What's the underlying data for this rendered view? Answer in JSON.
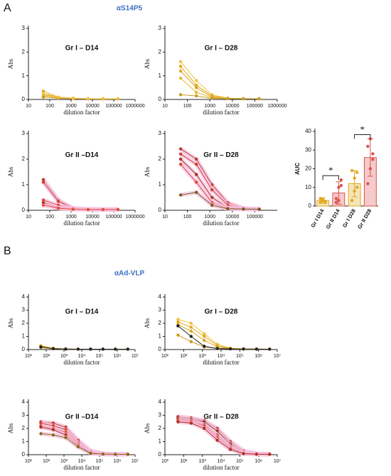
{
  "panel_labels": [
    "A",
    "B"
  ],
  "panel_titles": [
    "αS14P5",
    "αAd-VLP"
  ],
  "chart_data": [
    {
      "type": "line",
      "title": "Gr I – D14",
      "xlabel": "dilution factor",
      "ylabel": "Abs",
      "xscale": "log",
      "x": [
        50,
        250,
        1250,
        6250,
        31250,
        156250
      ],
      "xlim": [
        10,
        1000000
      ],
      "xticks": [
        10,
        100,
        1000,
        10000,
        100000,
        1000000
      ],
      "ylim": [
        0,
        3
      ],
      "yticks": [
        0,
        1,
        2,
        3
      ],
      "series": [
        {
          "color": "#e0a81e",
          "values": [
            0.35,
            0.1,
            0.05,
            0.03,
            0.03,
            0.03
          ]
        },
        {
          "color": "#d9a520",
          "values": [
            0.2,
            0.1,
            0.05,
            0.03,
            0.03,
            0.02
          ]
        },
        {
          "color": "#e8b830",
          "values": [
            0.15,
            0.08,
            0.04,
            0.03,
            0.03,
            0.03
          ]
        },
        {
          "color": "#c99a1a",
          "values": [
            0.1,
            0.05,
            0.03,
            0.02,
            0.02,
            0.02
          ]
        },
        {
          "color": "#f0c040",
          "values": [
            0.25,
            0.1,
            0.04,
            0.03,
            0.03,
            0.03
          ]
        }
      ]
    },
    {
      "type": "line",
      "title": "Gr I – D28",
      "xlabel": "dilution factor",
      "ylabel": "Abs",
      "xscale": "log",
      "x": [
        50,
        250,
        1250,
        6250,
        31250,
        156250
      ],
      "xlim": [
        10,
        1000000
      ],
      "xticks": [
        10,
        100,
        1000,
        10000,
        100000,
        1000000
      ],
      "ylim": [
        0,
        3
      ],
      "yticks": [
        0,
        1,
        2,
        3
      ],
      "series": [
        {
          "color": "#f0c040",
          "values": [
            1.6,
            0.8,
            0.2,
            0.05,
            0.03,
            0.03
          ]
        },
        {
          "color": "#e0a81e",
          "values": [
            1.4,
            0.6,
            0.15,
            0.05,
            0.03,
            0.03
          ]
        },
        {
          "color": "#d9a520",
          "values": [
            1.2,
            0.5,
            0.1,
            0.04,
            0.03,
            0.03
          ]
        },
        {
          "color": "#e8b830",
          "values": [
            0.9,
            0.3,
            0.08,
            0.04,
            0.03,
            0.03
          ]
        },
        {
          "color": "#c99a1a",
          "values": [
            0.2,
            0.15,
            0.05,
            0.03,
            0.03,
            0.03
          ]
        }
      ]
    },
    {
      "type": "line",
      "title": "Gr II –D14",
      "xlabel": "dilution factor",
      "ylabel": "Abs",
      "xscale": "log",
      "halo": "#f7c0e0",
      "x": [
        50,
        250,
        1250,
        6250,
        31250,
        156250
      ],
      "xlim": [
        10,
        1000000
      ],
      "xticks": [
        10,
        100,
        1000,
        10000,
        100000,
        1000000
      ],
      "ylim": [
        0,
        3
      ],
      "yticks": [
        0,
        1,
        2,
        3
      ],
      "series": [
        {
          "color": "#c0392b",
          "values": [
            1.2,
            0.4,
            0.08,
            0.04,
            0.03,
            0.03
          ]
        },
        {
          "color": "#d04030",
          "values": [
            1.1,
            0.35,
            0.07,
            0.04,
            0.03,
            0.03
          ]
        },
        {
          "color": "#e0453a",
          "values": [
            0.4,
            0.2,
            0.06,
            0.04,
            0.03,
            0.03
          ]
        },
        {
          "color": "#b03020",
          "values": [
            0.3,
            0.1,
            0.05,
            0.03,
            0.03,
            0.03
          ]
        },
        {
          "color": "#e85040",
          "values": [
            0.2,
            0.08,
            0.04,
            0.03,
            0.03,
            0.03
          ]
        }
      ]
    },
    {
      "type": "line",
      "title": "Gr II – D28",
      "xlabel": "dilution factor",
      "ylabel": "Abs",
      "xscale": "log",
      "halo": "#f7c0e0",
      "x": [
        50,
        250,
        1250,
        6250,
        31250,
        156250
      ],
      "xlim": [
        10,
        1000000
      ],
      "xticks": [
        10,
        100,
        1000,
        10000,
        100000
      ],
      "ylim": [
        0,
        3
      ],
      "yticks": [
        0,
        1,
        2,
        3
      ],
      "series": [
        {
          "color": "#c0392b",
          "values": [
            2.4,
            2.0,
            1.0,
            0.3,
            0.08,
            0.05
          ]
        },
        {
          "color": "#d04030",
          "values": [
            2.2,
            1.8,
            0.8,
            0.2,
            0.06,
            0.05
          ]
        },
        {
          "color": "#a8321f",
          "values": [
            2.0,
            1.4,
            0.5,
            0.1,
            0.05,
            0.04
          ]
        },
        {
          "color": "#e0453a",
          "values": [
            1.8,
            1.1,
            0.3,
            0.08,
            0.05,
            0.04
          ]
        },
        {
          "color": "#7a5a20",
          "values": [
            0.6,
            0.7,
            0.2,
            0.06,
            0.05,
            0.04
          ]
        }
      ]
    },
    {
      "type": "bar",
      "ylabel": "AUC",
      "categories": [
        "Gr I D14",
        "Gr II D14",
        "Gr I D28",
        "Gr II D28"
      ],
      "values": [
        3,
        7,
        12,
        26
      ],
      "errors": [
        1.5,
        6,
        7,
        10
      ],
      "points": [
        [
          2,
          3,
          2.5,
          4,
          3.5,
          2
        ],
        [
          2,
          3,
          14,
          4,
          10,
          11
        ],
        [
          3,
          8,
          18,
          19,
          15,
          10
        ],
        [
          12,
          36,
          28,
          32,
          20,
          25
        ]
      ],
      "colors": [
        "#e0a81e",
        "#d9534f",
        "#e0a81e",
        "#d9534f"
      ],
      "ylim": [
        0,
        40
      ],
      "yticks": [
        0,
        10,
        20,
        30,
        40
      ],
      "annotations": [
        "*",
        "*"
      ]
    },
    {
      "type": "line",
      "title": "Gr I – D14",
      "xlabel": "dilution factor",
      "ylabel": "Abs",
      "xscale": "log",
      "x": [
        50,
        250,
        1250,
        6250,
        31250,
        156250,
        781250,
        3906250
      ],
      "xlim": [
        10,
        10000000
      ],
      "xticks": [
        {
          "value": 10,
          "label": "10¹"
        },
        {
          "value": 100,
          "label": "10²"
        },
        {
          "value": 1000,
          "label": "10³"
        },
        {
          "value": 10000,
          "label": "10⁴"
        },
        {
          "value": 100000,
          "label": "10⁵"
        },
        {
          "value": 1000000,
          "label": "10⁶"
        },
        {
          "value": 10000000,
          "label": "10⁷"
        }
      ],
      "ylim": [
        0,
        4
      ],
      "yticks": [
        0,
        1,
        2,
        3,
        4
      ],
      "series": [
        {
          "color": "#e0a81e",
          "values": [
            0.3,
            0.1,
            0.05,
            0.03,
            0.03,
            0.03,
            0.03,
            0.03
          ]
        },
        {
          "color": "#f0c040",
          "values": [
            0.25,
            0.08,
            0.04,
            0.03,
            0.03,
            0.03,
            0.03,
            0.03
          ]
        },
        {
          "color": "#c99a1a",
          "values": [
            0.15,
            0.06,
            0.03,
            0.03,
            0.03,
            0.03,
            0.03,
            0.03
          ]
        },
        {
          "color": "#222222",
          "values": [
            0.2,
            0.07,
            0.04,
            0.03,
            0.03,
            0.03,
            0.03,
            0.03
          ]
        }
      ]
    },
    {
      "type": "line",
      "title": "Gr I – D28",
      "xlabel": "dilution factor",
      "ylabel": "Abs",
      "xscale": "log",
      "x": [
        50,
        250,
        1250,
        6250,
        31250,
        156250,
        781250,
        3906250
      ],
      "xlim": [
        10,
        10000000
      ],
      "xticks": [
        {
          "value": 10,
          "label": "10¹"
        },
        {
          "value": 100,
          "label": "10²"
        },
        {
          "value": 1000,
          "label": "10³"
        },
        {
          "value": 10000,
          "label": "10⁴"
        },
        {
          "value": 100000,
          "label": "10⁵"
        },
        {
          "value": 1000000,
          "label": "10⁶"
        },
        {
          "value": 10000000,
          "label": "10⁷"
        }
      ],
      "ylim": [
        0,
        4
      ],
      "yticks": [
        0,
        1,
        2,
        3,
        4
      ],
      "series": [
        {
          "color": "#f0c040",
          "values": [
            2.3,
            2.0,
            1.2,
            0.4,
            0.1,
            0.05,
            0.04,
            0.03
          ]
        },
        {
          "color": "#e0a81e",
          "values": [
            2.1,
            1.7,
            1.0,
            0.3,
            0.08,
            0.05,
            0.04,
            0.03
          ]
        },
        {
          "color": "#d9a520",
          "values": [
            1.9,
            1.4,
            0.7,
            0.2,
            0.06,
            0.04,
            0.03,
            0.03
          ]
        },
        {
          "color": "#c99a1a",
          "values": [
            1.1,
            0.6,
            0.2,
            0.08,
            0.05,
            0.04,
            0.03,
            0.03
          ]
        },
        {
          "color": "#222222",
          "values": [
            1.8,
            1.0,
            0.25,
            0.08,
            0.05,
            0.04,
            0.03,
            0.03
          ]
        }
      ]
    },
    {
      "type": "line",
      "title": "Gr II –D14",
      "xlabel": "dilution factor",
      "ylabel": "Abs",
      "xscale": "log",
      "halo": "#f7c0e0",
      "x": [
        50,
        250,
        1250,
        6250,
        31250,
        156250,
        781250,
        3906250
      ],
      "xlim": [
        10,
        10000000
      ],
      "xticks": [
        {
          "value": 10,
          "label": "10¹"
        },
        {
          "value": 100,
          "label": "10²"
        },
        {
          "value": 1000,
          "label": "10³"
        },
        {
          "value": 10000,
          "label": "10⁴"
        },
        {
          "value": 100000,
          "label": "10⁵"
        },
        {
          "value": 1000000,
          "label": "10⁶"
        },
        {
          "value": 10000000,
          "label": "10⁷"
        }
      ],
      "ylim": [
        0,
        4
      ],
      "yticks": [
        0,
        1,
        2,
        3,
        4
      ],
      "series": [
        {
          "color": "#c0392b",
          "values": [
            2.5,
            2.4,
            2.1,
            1.1,
            0.3,
            0.08,
            0.04,
            0.03
          ]
        },
        {
          "color": "#d04030",
          "values": [
            2.4,
            2.2,
            1.9,
            0.9,
            0.25,
            0.07,
            0.04,
            0.03
          ]
        },
        {
          "color": "#e0453a",
          "values": [
            2.2,
            2.0,
            1.7,
            0.8,
            0.2,
            0.06,
            0.04,
            0.03
          ]
        },
        {
          "color": "#b03020",
          "values": [
            2.1,
            1.9,
            1.5,
            0.7,
            0.15,
            0.05,
            0.03,
            0.03
          ]
        },
        {
          "color": "#8a6a20",
          "values": [
            1.6,
            1.5,
            1.3,
            0.6,
            0.1,
            0.05,
            0.03,
            0.03
          ]
        }
      ]
    },
    {
      "type": "line",
      "title": "Gr II – D28",
      "xlabel": "dilution factor",
      "ylabel": "Abs",
      "xscale": "log",
      "halo": "#f7c0e0",
      "x": [
        50,
        250,
        1250,
        6250,
        31250,
        156250,
        781250,
        3906250
      ],
      "xlim": [
        10,
        10000000
      ],
      "xticks": [
        {
          "value": 10,
          "label": "10¹"
        },
        {
          "value": 100,
          "label": "10²"
        },
        {
          "value": 1000,
          "label": "10³"
        },
        {
          "value": 10000,
          "label": "10⁴"
        },
        {
          "value": 100000,
          "label": "10⁵"
        },
        {
          "value": 1000000,
          "label": "10⁶"
        },
        {
          "value": 10000000,
          "label": "10⁷"
        }
      ],
      "ylim": [
        0,
        4
      ],
      "yticks": [
        0,
        1,
        2,
        3,
        4
      ],
      "series": [
        {
          "color": "#c0392b",
          "values": [
            2.9,
            2.8,
            2.6,
            2.0,
            1.0,
            0.3,
            0.08,
            0.04
          ]
        },
        {
          "color": "#8a3a20",
          "values": [
            2.8,
            2.7,
            2.5,
            1.8,
            0.8,
            0.2,
            0.06,
            0.04
          ]
        },
        {
          "color": "#d04030",
          "values": [
            2.7,
            2.6,
            2.3,
            1.5,
            0.6,
            0.15,
            0.05,
            0.04
          ]
        },
        {
          "color": "#e0453a",
          "values": [
            2.6,
            2.5,
            2.2,
            1.3,
            0.5,
            0.1,
            0.05,
            0.03
          ]
        },
        {
          "color": "#b03020",
          "values": [
            2.5,
            2.4,
            2.0,
            1.1,
            0.4,
            0.08,
            0.04,
            0.03
          ]
        }
      ]
    }
  ]
}
